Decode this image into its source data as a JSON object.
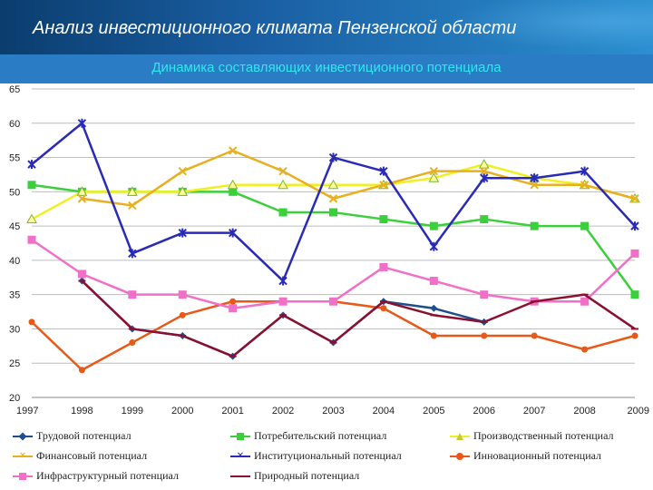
{
  "header": {
    "title": "Анализ инвестиционного климата Пензенской области"
  },
  "chart_data": {
    "type": "line",
    "title": "Динамика составляющих инвестиционного потенциала",
    "categories": [
      "1997",
      "1998",
      "1999",
      "2000",
      "2001",
      "2002",
      "2003",
      "2004",
      "2005",
      "2006",
      "2007",
      "2008",
      "2009"
    ],
    "ylim": [
      20,
      65
    ],
    "yticks": [
      20,
      25,
      30,
      35,
      40,
      45,
      50,
      55,
      60,
      65
    ],
    "grid": true,
    "legend_position": "bottom",
    "series": [
      {
        "name": "Трудовой потенциал",
        "color": "#1f4e8c",
        "marker": "diamond",
        "values": [
          null,
          37,
          30,
          29,
          26,
          32,
          28,
          34,
          33,
          31,
          null,
          null,
          null
        ]
      },
      {
        "name": "Потребительский потенциал",
        "color": "#3ccf3c",
        "marker": "square",
        "values": [
          51,
          50,
          50,
          50,
          50,
          47,
          47,
          46,
          45,
          46,
          45,
          45,
          35
        ]
      },
      {
        "name": "Производственный потенциал",
        "color": "#f0f020",
        "marker": "triangle",
        "values": [
          46,
          50,
          50,
          50,
          51,
          51,
          51,
          51,
          52,
          54,
          52,
          51,
          49
        ]
      },
      {
        "name": "Финансовый потенциал",
        "color": "#e8b020",
        "marker": "x",
        "values": [
          null,
          49,
          48,
          53,
          56,
          53,
          49,
          51,
          53,
          53,
          51,
          51,
          49
        ]
      },
      {
        "name": "Институциональный потенциал",
        "color": "#2a2ab8",
        "marker": "star",
        "values": [
          54,
          60,
          41,
          44,
          44,
          37,
          55,
          53,
          42,
          52,
          52,
          53,
          45
        ]
      },
      {
        "name": "Инновационный потенциал",
        "color": "#e85818",
        "marker": "circle",
        "values": [
          31,
          24,
          28,
          32,
          34,
          34,
          34,
          33,
          29,
          29,
          29,
          27,
          29
        ]
      },
      {
        "name": "Инфраструктурный потенциал",
        "color": "#f070c8",
        "marker": "square",
        "values": [
          43,
          38,
          35,
          35,
          33,
          34,
          34,
          39,
          37,
          35,
          34,
          34,
          41
        ]
      },
      {
        "name": "Природный потенциал",
        "color": "#8b1030",
        "marker": "dash",
        "values": [
          null,
          37,
          30,
          29,
          26,
          32,
          28,
          34,
          32,
          31,
          34,
          35,
          30
        ]
      }
    ]
  }
}
